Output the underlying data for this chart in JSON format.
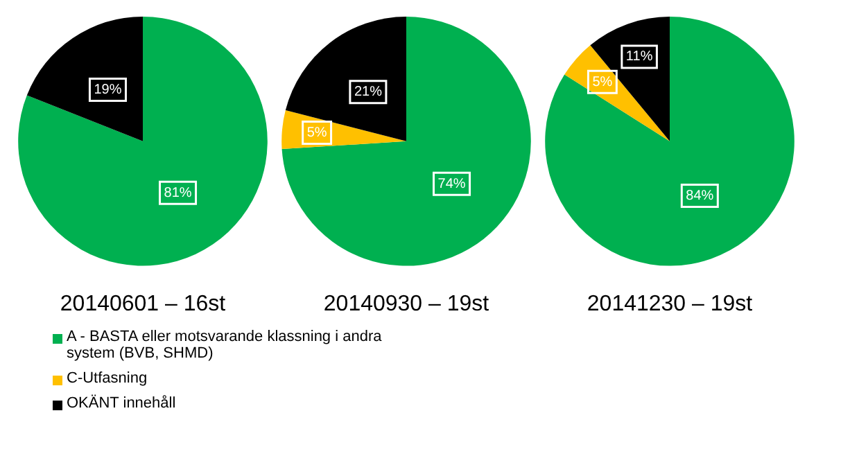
{
  "chart_data": [
    {
      "type": "pie",
      "title": "20140601 – 16st",
      "categories": [
        "A - BASTA eller motsvarande klassning i andra system (BVB, SHMD)",
        "C-Utfasning",
        "OKÄNT innehåll"
      ],
      "values": [
        81,
        null,
        19
      ],
      "value_labels": [
        "81%",
        null,
        "19%"
      ],
      "colors": [
        "#00b050",
        "#ffc000",
        "#000000"
      ],
      "legend": "bottom"
    },
    {
      "type": "pie",
      "title": "20140930 – 19st",
      "categories": [
        null,
        null,
        null
      ],
      "values": [
        74,
        5,
        21
      ],
      "value_labels": [
        "74%",
        "5%",
        "21%"
      ],
      "colors": [
        "#00b050",
        "#ffc000",
        "#000000"
      ]
    },
    {
      "type": "pie",
      "title": "20141230 – 19st",
      "categories": [
        null,
        null,
        null
      ],
      "values": [
        84,
        5,
        11
      ],
      "value_labels": [
        "84%",
        "5%",
        "11%"
      ],
      "colors": [
        "#00b050",
        "#ffc000",
        "#000000"
      ]
    }
  ]
}
